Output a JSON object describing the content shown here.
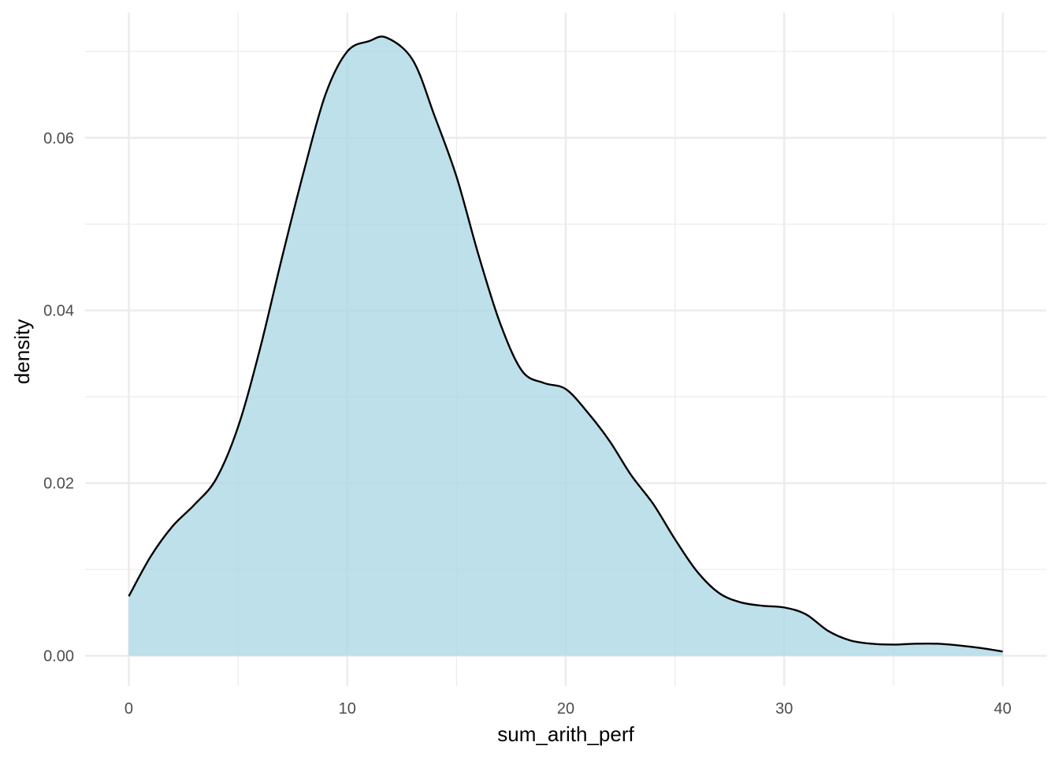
{
  "chart_data": {
    "type": "area",
    "title": "",
    "xlabel": "sum_arith_perf",
    "ylabel": "density",
    "xlim": [
      -2,
      42
    ],
    "ylim": [
      -0.0035,
      0.0745
    ],
    "x_ticks": [
      0,
      10,
      20,
      30,
      40
    ],
    "x_tick_labels": [
      "0",
      "10",
      "20",
      "30",
      "40"
    ],
    "x_minor_ticks": [
      5,
      15,
      25,
      35
    ],
    "y_ticks": [
      0.0,
      0.02,
      0.04,
      0.06
    ],
    "y_tick_labels": [
      "0.00",
      "0.02",
      "0.04",
      "0.06"
    ],
    "y_minor_ticks": [
      0.01,
      0.03,
      0.05,
      0.07
    ],
    "grid": true,
    "legend": "none",
    "colors": {
      "fill": "#add8e6",
      "line": "#000000",
      "grid": "#ebebeb"
    },
    "series": [
      {
        "x": [
          0,
          1,
          2,
          3,
          4,
          5,
          6,
          7,
          8,
          9,
          10,
          11,
          11.8,
          13,
          14,
          15,
          16,
          17,
          18,
          19,
          20,
          21,
          22,
          23,
          24,
          25,
          26,
          27,
          28,
          29,
          30,
          31,
          32,
          33,
          34,
          35,
          36,
          37,
          38,
          39,
          40
        ],
        "y": [
          0.0069,
          0.0115,
          0.015,
          0.0175,
          0.0205,
          0.0265,
          0.0355,
          0.046,
          0.056,
          0.065,
          0.07,
          0.0712,
          0.0716,
          0.069,
          0.0625,
          0.0555,
          0.0465,
          0.0385,
          0.033,
          0.0316,
          0.0309,
          0.0282,
          0.0249,
          0.0209,
          0.0176,
          0.0135,
          0.0098,
          0.0073,
          0.0062,
          0.0058,
          0.0056,
          0.0048,
          0.0029,
          0.0018,
          0.0014,
          0.0013,
          0.0014,
          0.0014,
          0.0012,
          0.0009,
          0.0005
        ]
      }
    ]
  }
}
